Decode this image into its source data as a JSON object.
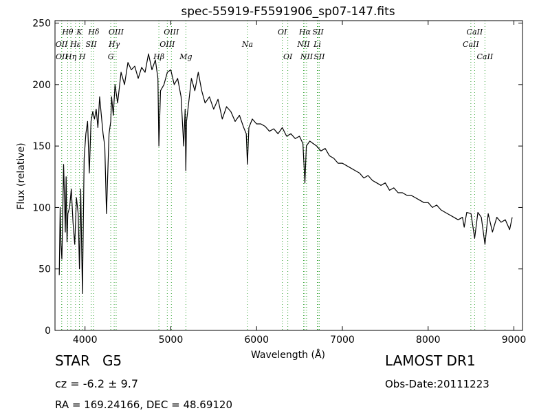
{
  "chart_data": {
    "type": "line",
    "title": "spec-55919-F5591906_sp07-147.fits",
    "xlabel": "Wavelength (Å)",
    "ylabel": "Flux (relative)",
    "xlim": [
      3650,
      9100
    ],
    "ylim": [
      0,
      252
    ],
    "xticks": [
      4000,
      5000,
      6000,
      7000,
      8000,
      9000
    ],
    "yticks": [
      0,
      50,
      100,
      150,
      200,
      250
    ],
    "grid": false,
    "line_color": "#000000",
    "marker_color": "#2ca02c",
    "series": [
      {
        "x": [
          3700,
          3710,
          3720,
          3730,
          3740,
          3750,
          3760,
          3770,
          3780,
          3790,
          3800,
          3820,
          3840,
          3860,
          3880,
          3900,
          3920,
          3935,
          3950,
          3970,
          3990,
          4010,
          4030,
          4050,
          4070,
          4090,
          4110,
          4130,
          4150,
          4170,
          4190,
          4210,
          4230,
          4250,
          4280,
          4300,
          4310,
          4330,
          4350,
          4380,
          4420,
          4460,
          4500,
          4540,
          4580,
          4620,
          4660,
          4700,
          4740,
          4780,
          4820,
          4850,
          4861,
          4880,
          4920,
          4960,
          5000,
          5040,
          5080,
          5120,
          5150,
          5167,
          5175,
          5183,
          5200,
          5240,
          5280,
          5320,
          5360,
          5400,
          5450,
          5500,
          5550,
          5600,
          5650,
          5700,
          5750,
          5800,
          5850,
          5880,
          5893,
          5910,
          5950,
          6000,
          6050,
          6100,
          6150,
          6200,
          6250,
          6300,
          6350,
          6400,
          6450,
          6500,
          6540,
          6563,
          6580,
          6620,
          6660,
          6700,
          6750,
          6800,
          6850,
          6900,
          6950,
          7000,
          7050,
          7100,
          7150,
          7200,
          7250,
          7300,
          7350,
          7400,
          7450,
          7500,
          7550,
          7600,
          7650,
          7700,
          7750,
          7800,
          7850,
          7900,
          7950,
          8000,
          8050,
          8100,
          8150,
          8200,
          8250,
          8300,
          8350,
          8400,
          8420,
          8450,
          8500,
          8542,
          8580,
          8620,
          8662,
          8700,
          8750,
          8800,
          8850,
          8900,
          8950,
          8980
        ],
        "y": [
          45,
          100,
          70,
          58,
          92,
          135,
          110,
          80,
          125,
          72,
          95,
          100,
          115,
          88,
          70,
          108,
          95,
          50,
          115,
          30,
          140,
          160,
          170,
          128,
          170,
          178,
          172,
          180,
          165,
          190,
          175,
          160,
          150,
          95,
          160,
          170,
          190,
          175,
          200,
          185,
          210,
          200,
          218,
          212,
          215,
          205,
          214,
          210,
          225,
          212,
          220,
          205,
          150,
          195,
          200,
          210,
          212,
          200,
          205,
          190,
          150,
          180,
          130,
          170,
          180,
          205,
          195,
          210,
          195,
          185,
          190,
          180,
          188,
          172,
          182,
          178,
          170,
          175,
          165,
          160,
          135,
          165,
          172,
          168,
          168,
          166,
          162,
          164,
          160,
          165,
          158,
          160,
          156,
          158,
          152,
          120,
          150,
          154,
          152,
          150,
          146,
          148,
          142,
          140,
          136,
          136,
          134,
          132,
          130,
          128,
          124,
          126,
          122,
          120,
          118,
          120,
          114,
          116,
          112,
          112,
          110,
          110,
          108,
          106,
          104,
          104,
          100,
          102,
          98,
          96,
          94,
          92,
          90,
          92,
          84,
          96,
          95,
          75,
          96,
          92,
          70,
          95,
          80,
          92,
          88,
          90,
          82,
          92
        ]
      }
    ],
    "lines": [
      {
        "label": "OII",
        "x": 3727,
        "row": 2
      },
      {
        "label": "OII",
        "x": 3729,
        "row": 3
      },
      {
        "label": "Hθ",
        "x": 3798,
        "row": 1
      },
      {
        "label": "Hη",
        "x": 3835,
        "row": 3
      },
      {
        "label": "Hε",
        "x": 3889,
        "row": 2
      },
      {
        "label": "K",
        "x": 3934,
        "row": 1
      },
      {
        "label": "H",
        "x": 3969,
        "row": 3
      },
      {
        "label": "SII",
        "x": 4072,
        "row": 2
      },
      {
        "label": "Hδ",
        "x": 4102,
        "row": 1
      },
      {
        "label": "G",
        "x": 4300,
        "row": 3
      },
      {
        "label": "Hγ",
        "x": 4340,
        "row": 2
      },
      {
        "label": "OIII",
        "x": 4363,
        "row": 1
      },
      {
        "label": "Hβ",
        "x": 4861,
        "row": 3
      },
      {
        "label": "OIII",
        "x": 4959,
        "row": 2
      },
      {
        "label": "OIII",
        "x": 5007,
        "row": 1
      },
      {
        "label": "Mg",
        "x": 5176,
        "row": 3
      },
      {
        "label": "Na",
        "x": 5894,
        "row": 2
      },
      {
        "label": "OI",
        "x": 6300,
        "row": 1
      },
      {
        "label": "OI",
        "x": 6364,
        "row": 3
      },
      {
        "label": "NII",
        "x": 6548,
        "row": 2
      },
      {
        "label": "Hα",
        "x": 6563,
        "row": 1
      },
      {
        "label": "NII",
        "x": 6583,
        "row": 3
      },
      {
        "label": "Li",
        "x": 6708,
        "row": 2
      },
      {
        "label": "SII",
        "x": 6717,
        "row": 1
      },
      {
        "label": "SII",
        "x": 6731,
        "row": 3
      },
      {
        "label": "CaII",
        "x": 8498,
        "row": 2
      },
      {
        "label": "CaII",
        "x": 8542,
        "row": 1
      },
      {
        "label": "CaII",
        "x": 8662,
        "row": 3
      }
    ]
  },
  "info": {
    "class": "STAR",
    "subclass": "G5",
    "cz": "cz = -6.2 ± 9.7",
    "radec": "RA = 169.24166, DEC = 48.69120",
    "survey": "LAMOST DR1",
    "obs_date": "Obs-Date:20111223"
  }
}
